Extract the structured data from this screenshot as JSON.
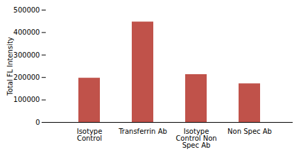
{
  "chart_data": {
    "type": "bar",
    "categories": [
      "Isotype\nControl",
      "Transferrin Ab",
      "Isotype\nControl Non\nSpec Ab",
      "Non Spec Ab"
    ],
    "values": [
      197000,
      447000,
      213000,
      172000
    ],
    "color": "#c0524a",
    "ylabel": "Total FL Intensity",
    "ylim": [
      0,
      500000
    ],
    "yticks": [
      0,
      100000,
      200000,
      300000,
      400000,
      500000
    ],
    "grid": false
  }
}
